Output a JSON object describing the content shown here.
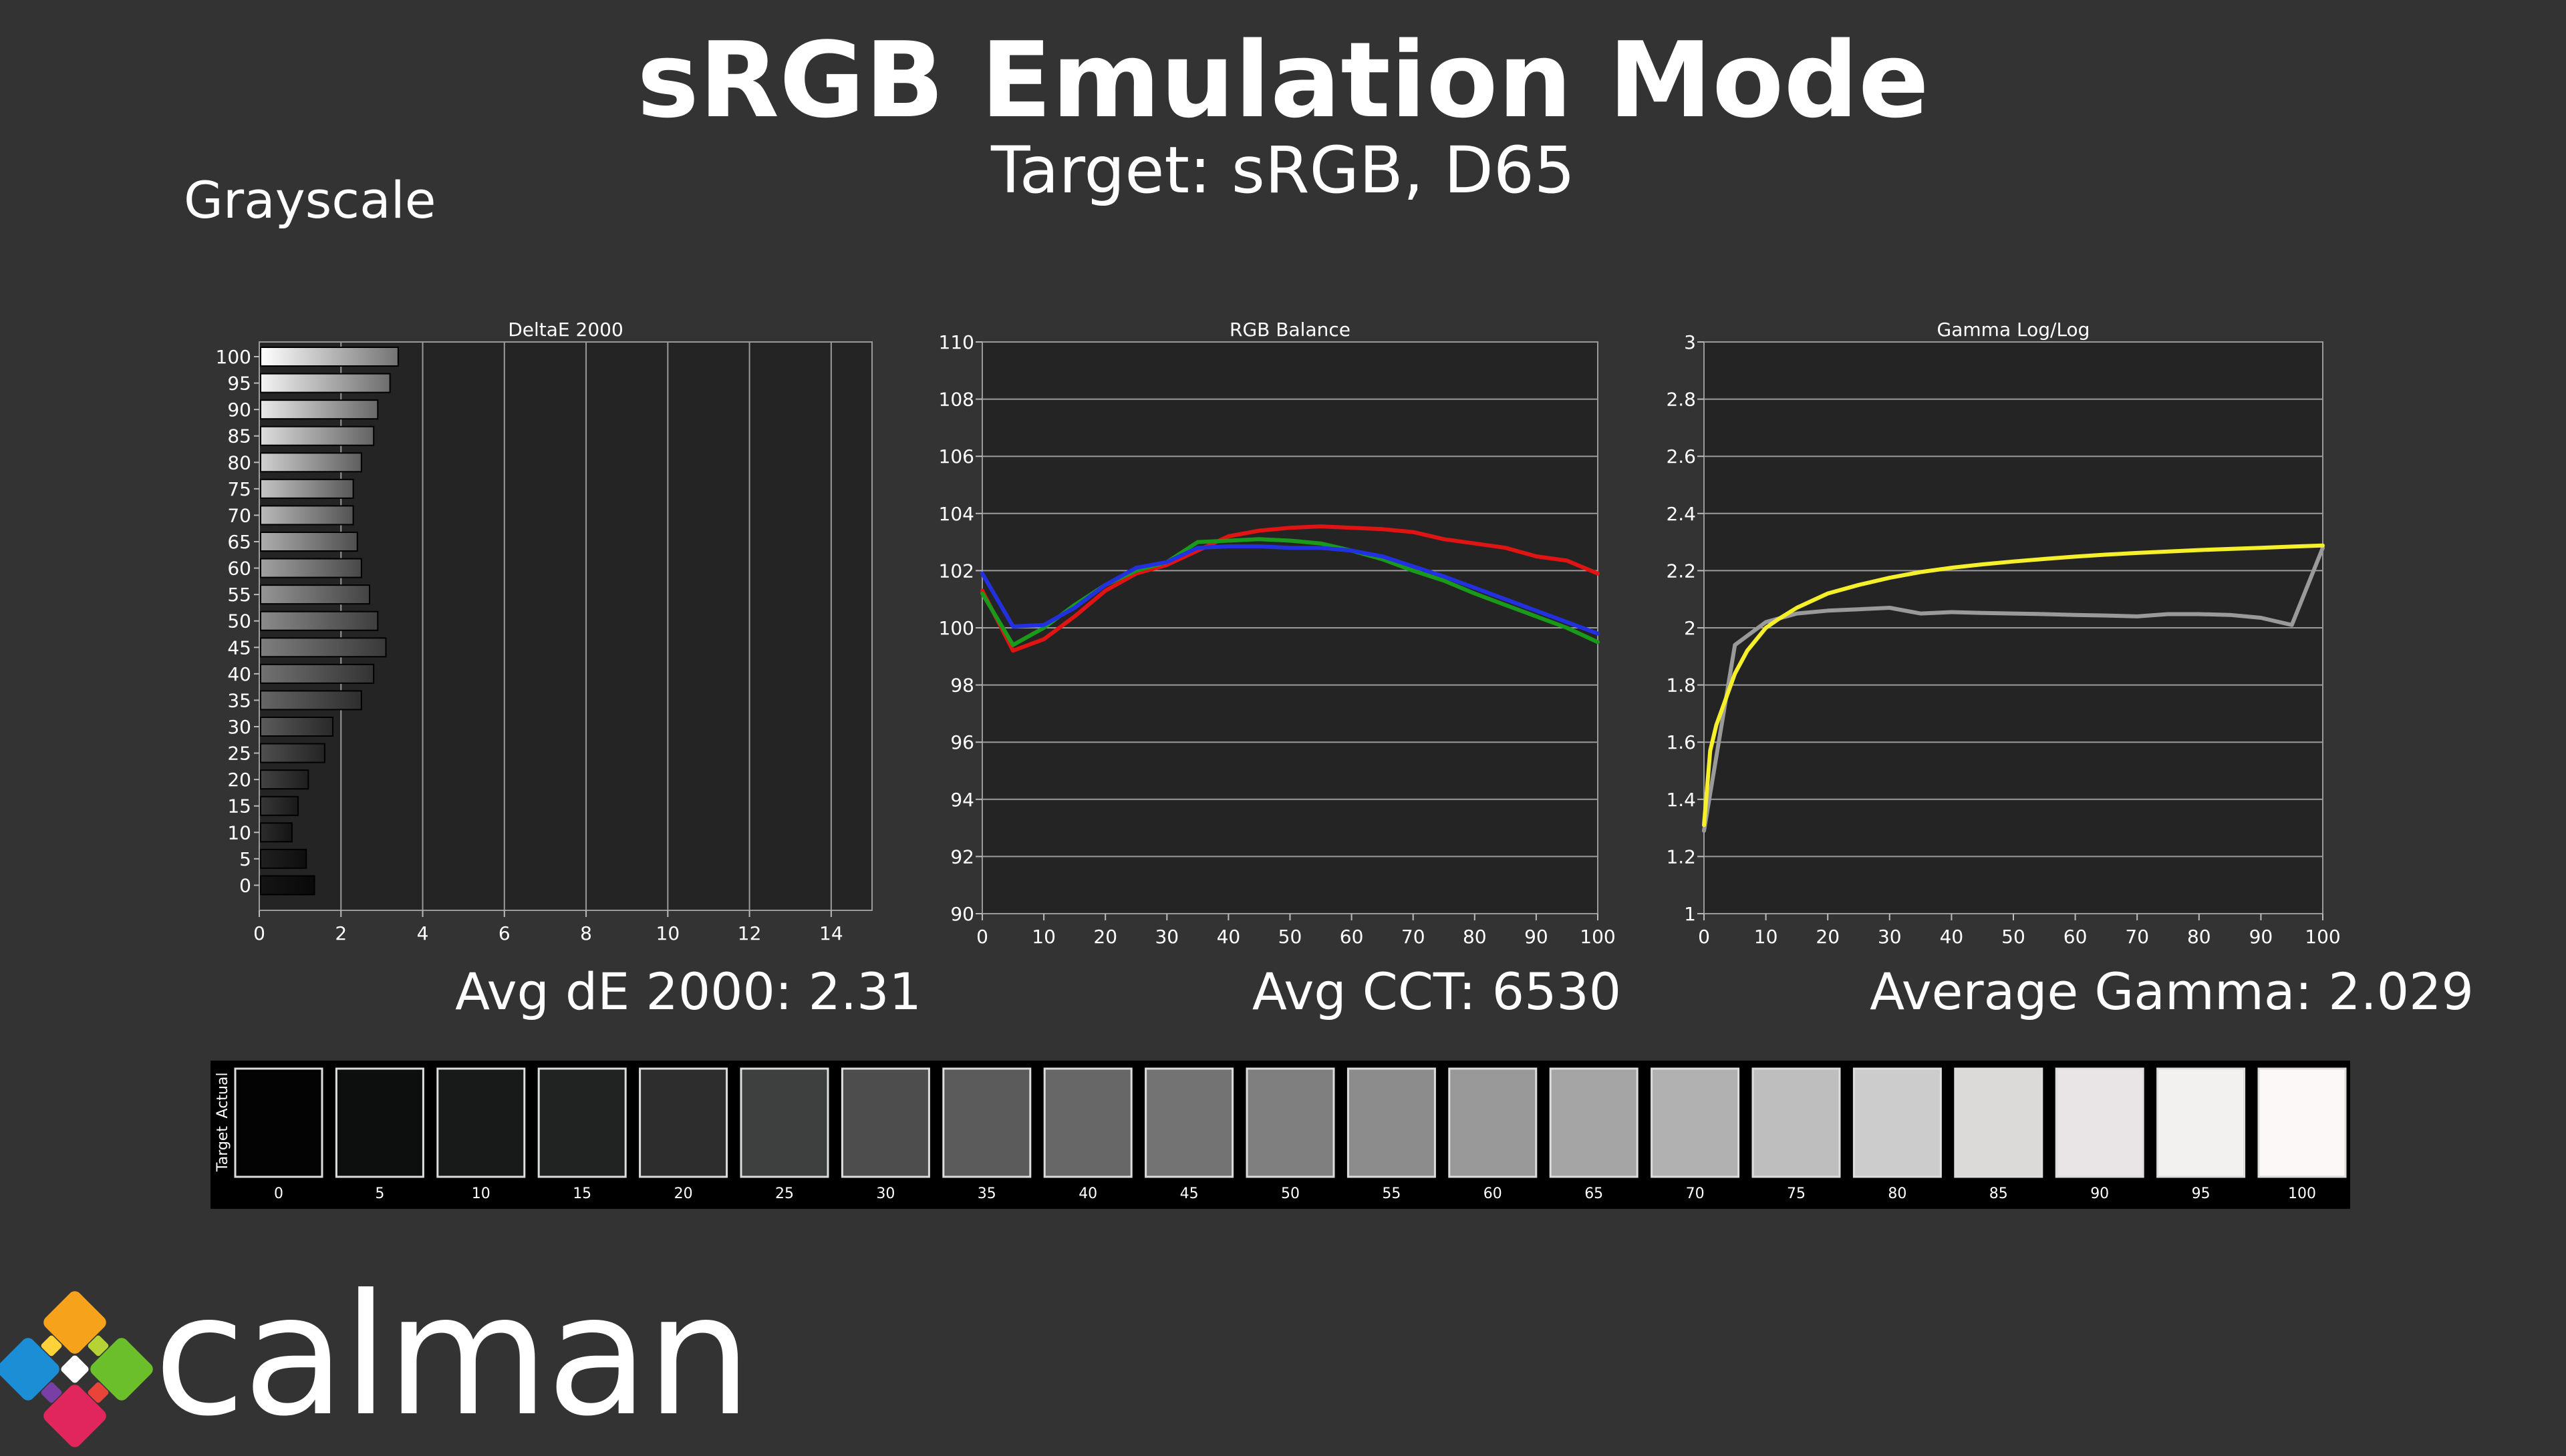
{
  "title": "sRGB Emulation Mode",
  "subtitle": "Target: sRGB, D65",
  "section_label": "Grayscale",
  "stats": {
    "avg_de": "Avg dE 2000: 2.31",
    "avg_cct": "Avg CCT: 6530",
    "avg_gamma": "Average Gamma: 2.029"
  },
  "logo": {
    "name": "calman"
  },
  "colors": {
    "background": "#333333",
    "plot_bg": "#242424",
    "red": "#e11414",
    "green": "#1a9a1a",
    "blue": "#2330e0",
    "gamma_actual": "#f5f02a",
    "gamma_target": "#9a9a9a"
  },
  "chart_data": [
    {
      "type": "bar",
      "orientation": "horizontal",
      "title": "DeltaE 2000",
      "categories": [
        "100",
        "95",
        "90",
        "85",
        "80",
        "75",
        "70",
        "65",
        "60",
        "55",
        "50",
        "45",
        "40",
        "35",
        "30",
        "25",
        "20",
        "15",
        "10",
        "5",
        "0"
      ],
      "values": [
        3.4,
        3.2,
        2.9,
        2.8,
        2.5,
        2.3,
        2.3,
        2.4,
        2.5,
        2.7,
        2.9,
        3.1,
        2.8,
        2.5,
        1.8,
        1.6,
        1.2,
        0.95,
        0.8,
        1.15,
        1.35
      ],
      "xticks": [
        "0",
        "2",
        "4",
        "6",
        "8",
        "10",
        "12",
        "14"
      ],
      "xlim": [
        0,
        15
      ]
    },
    {
      "type": "line",
      "title": "RGB Balance",
      "x": [
        0,
        5,
        10,
        15,
        20,
        25,
        30,
        35,
        40,
        45,
        50,
        55,
        60,
        65,
        70,
        75,
        80,
        85,
        90,
        95,
        100
      ],
      "xticks": [
        "0",
        "10",
        "20",
        "30",
        "40",
        "50",
        "60",
        "70",
        "80",
        "90",
        "100"
      ],
      "yticks": [
        "90",
        "92",
        "94",
        "96",
        "98",
        "100",
        "102",
        "104",
        "106",
        "108",
        "110"
      ],
      "ylim": [
        90,
        110
      ],
      "series": [
        {
          "color": "#e11414",
          "values": [
            101.3,
            99.2,
            99.6,
            100.4,
            101.3,
            101.9,
            102.2,
            102.7,
            103.2,
            103.4,
            103.5,
            103.55,
            103.5,
            103.45,
            103.35,
            103.1,
            102.95,
            102.8,
            102.5,
            102.35,
            101.9
          ]
        },
        {
          "color": "#1a9a1a",
          "values": [
            101.2,
            99.4,
            100.0,
            100.8,
            101.5,
            102.0,
            102.3,
            103.0,
            103.05,
            103.1,
            103.05,
            102.95,
            102.7,
            102.4,
            102.0,
            101.65,
            101.2,
            100.8,
            100.4,
            100.0,
            99.5
          ]
        },
        {
          "color": "#2330e0",
          "values": [
            101.9,
            100.05,
            100.1,
            100.7,
            101.5,
            102.1,
            102.3,
            102.8,
            102.85,
            102.85,
            102.8,
            102.8,
            102.7,
            102.5,
            102.15,
            101.8,
            101.4,
            101.0,
            100.6,
            100.2,
            99.8
          ]
        }
      ]
    },
    {
      "type": "line",
      "title": "Gamma Log/Log",
      "x": [
        0,
        5,
        10,
        15,
        20,
        25,
        30,
        35,
        40,
        45,
        50,
        55,
        60,
        65,
        70,
        75,
        80,
        85,
        90,
        95,
        100
      ],
      "xticks": [
        "0",
        "10",
        "20",
        "30",
        "40",
        "50",
        "60",
        "70",
        "80",
        "90",
        "100"
      ],
      "yticks": [
        "1",
        "1.2",
        "1.4",
        "1.6",
        "1.8",
        "2",
        "2.2",
        "2.4",
        "2.6",
        "2.8",
        "3"
      ],
      "ylim": [
        1,
        3
      ],
      "series": [
        {
          "color": "#9a9a9a",
          "values": [
            1.29,
            1.94,
            2.02,
            2.05,
            2.06,
            2.065,
            2.07,
            2.05,
            2.055,
            2.052,
            2.05,
            2.048,
            2.045,
            2.043,
            2.04,
            2.048,
            2.048,
            2.045,
            2.035,
            2.01,
            2.28
          ]
        },
        {
          "color": "#f5f02a",
          "x": [
            0,
            1,
            2,
            3,
            4,
            5,
            7,
            10,
            12,
            15,
            20,
            25,
            30,
            35,
            40,
            45,
            50,
            55,
            60,
            65,
            70,
            75,
            80,
            85,
            90,
            95,
            100
          ],
          "values": [
            1.31,
            1.57,
            1.66,
            1.72,
            1.78,
            1.84,
            1.92,
            2.0,
            2.03,
            2.07,
            2.12,
            2.15,
            2.175,
            2.195,
            2.21,
            2.222,
            2.232,
            2.241,
            2.249,
            2.256,
            2.262,
            2.267,
            2.272,
            2.276,
            2.28,
            2.284,
            2.288
          ]
        }
      ]
    }
  ],
  "swatch_strip": {
    "row_labels": [
      "Actual",
      "Target"
    ],
    "labels": [
      "0",
      "5",
      "10",
      "15",
      "20",
      "25",
      "30",
      "35",
      "40",
      "45",
      "50",
      "55",
      "60",
      "65",
      "70",
      "75",
      "80",
      "85",
      "90",
      "95",
      "100"
    ],
    "colors": [
      "#030303",
      "#0d0e0e",
      "#181a19",
      "#212323",
      "#2d2d2d",
      "#3e3f3f",
      "#4d4d4d",
      "#5b5b5b",
      "#676767",
      "#737373",
      "#7f7f7f",
      "#8c8c8c",
      "#999999",
      "#a5a5a5",
      "#b1b1b1",
      "#bebebe",
      "#cccccc",
      "#dcd9d9",
      "#e9e5e6",
      "#f3f0f0",
      "#fcf8f8"
    ]
  }
}
